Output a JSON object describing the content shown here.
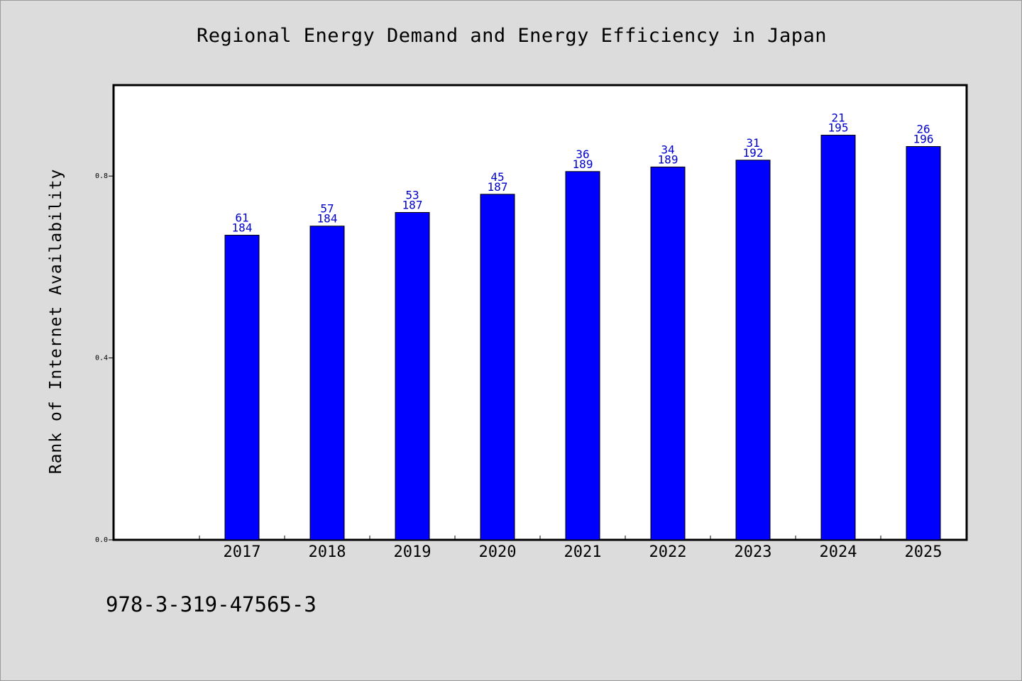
{
  "chart_data": {
    "type": "bar",
    "title": "Regional Energy Demand and Energy Efficiency in Japan",
    "xlabel": "",
    "ylabel": "Rank of Internet Availability",
    "categories": [
      "2017",
      "2018",
      "2019",
      "2020",
      "2021",
      "2022",
      "2023",
      "2024",
      "2025"
    ],
    "values": [
      0.67,
      0.69,
      0.72,
      0.76,
      0.81,
      0.82,
      0.835,
      0.89,
      0.865
    ],
    "label_top": [
      "61",
      "57",
      "53",
      "45",
      "36",
      "34",
      "31",
      "21",
      "26"
    ],
    "label_bottom": [
      "184",
      "184",
      "187",
      "187",
      "189",
      "189",
      "192",
      "195",
      "196"
    ],
    "yticks": [
      0.0,
      0.4,
      0.8
    ],
    "ytick_labels": [
      "0.0",
      "0.4",
      "0.8"
    ],
    "ylim": [
      0,
      1.0
    ],
    "grid": false,
    "colors": {
      "bar": "#0000ff",
      "label": "#0000cc",
      "background": "#dcdcdc",
      "plot_background": "#ffffff"
    }
  },
  "footer": {
    "isbn": "978-3-319-47565-3"
  }
}
